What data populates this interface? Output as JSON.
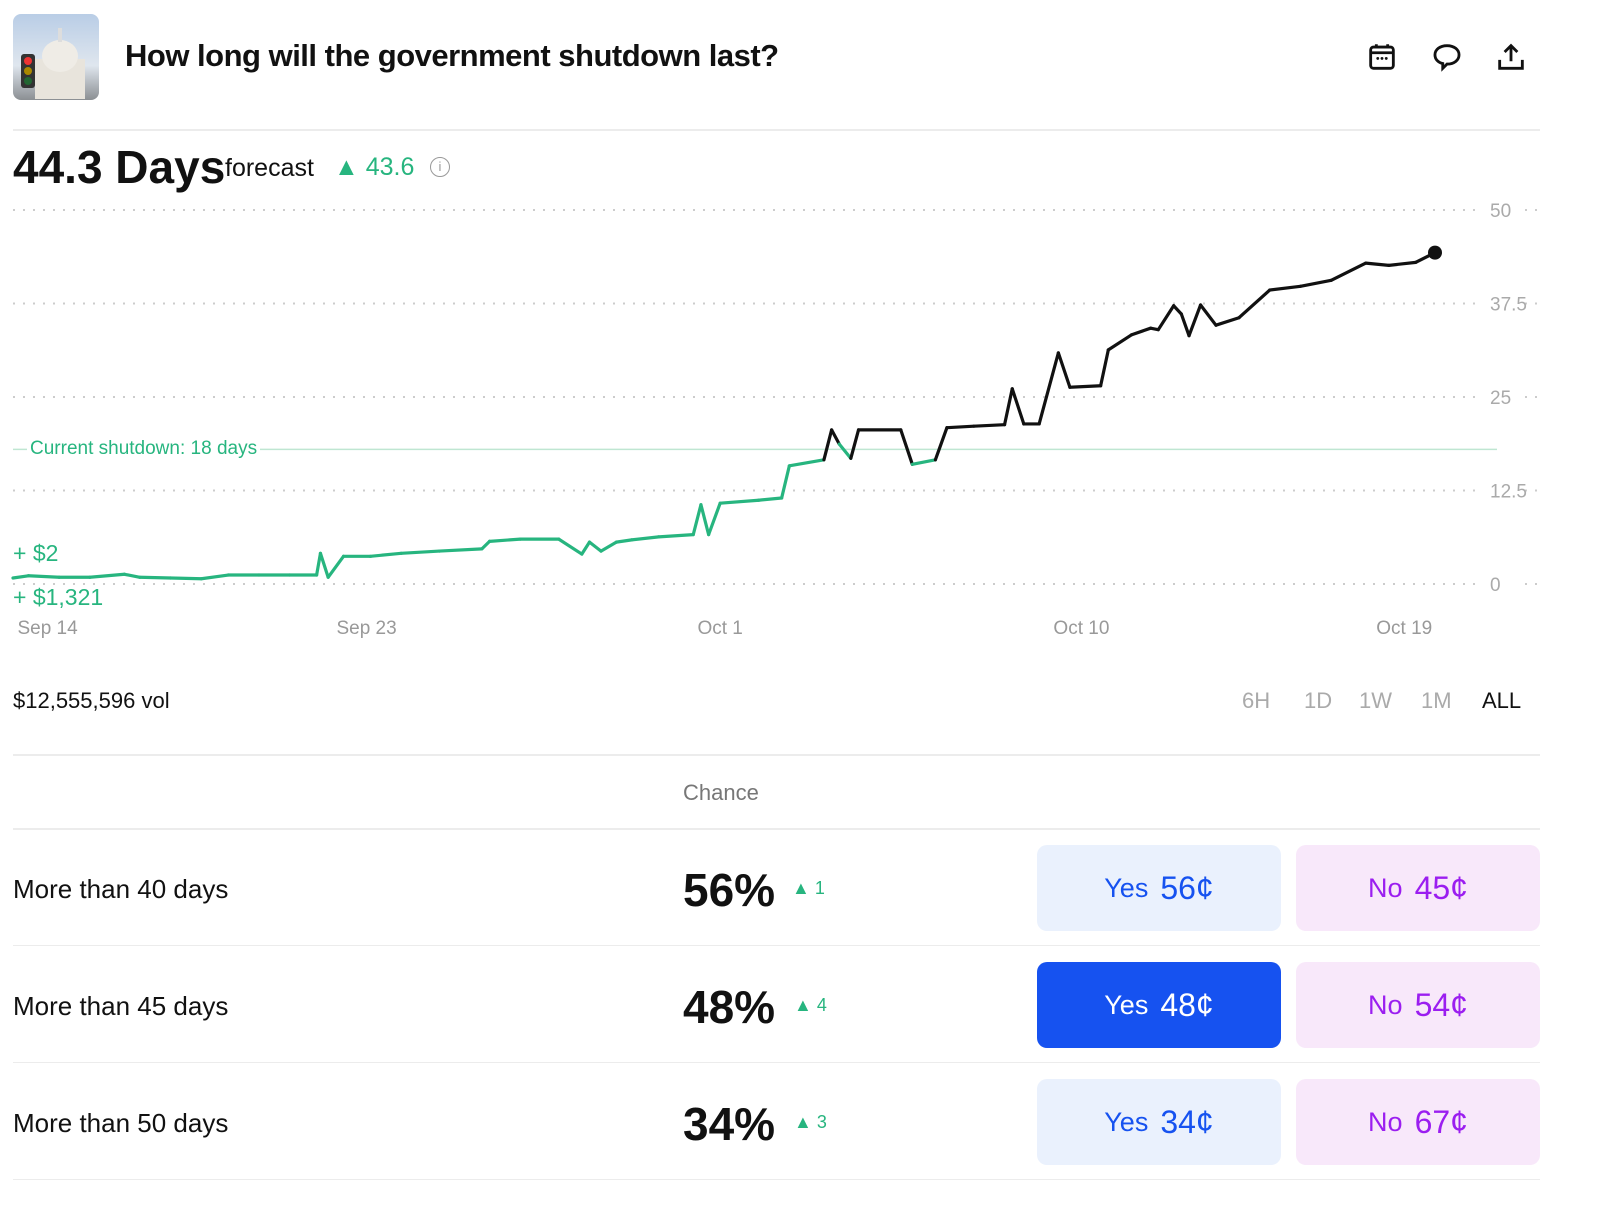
{
  "header": {
    "title": "How long will the government shutdown last?",
    "icons": [
      "calendar-icon",
      "comment-icon",
      "share-icon"
    ]
  },
  "forecast": {
    "value": "44.3 Days",
    "label": "forecast",
    "change": "43.6"
  },
  "chart_data": {
    "type": "line",
    "yticks": [
      "50",
      "37.5",
      "25",
      "12.5",
      "0"
    ],
    "ytick_values": [
      50,
      37.5,
      25,
      12.5,
      0
    ],
    "ylim": [
      0,
      50
    ],
    "xlim": [
      0,
      37
    ],
    "xticks": [
      {
        "label": "Sep 14",
        "day": 0.9
      },
      {
        "label": "Sep 23",
        "day": 9.2
      },
      {
        "label": "Oct 1",
        "day": 18.4
      },
      {
        "label": "Oct 10",
        "day": 27.8
      },
      {
        "label": "Oct 19",
        "day": 36.2
      }
    ],
    "reference": {
      "label": "Current shutdown: 18 days",
      "value": 18
    },
    "annotations": [
      "+ $2",
      "+ $1,321"
    ],
    "colors": {
      "below": "#27b57f",
      "above": "#111111"
    },
    "points": [
      [
        0,
        0.8
      ],
      [
        0.4,
        1.1
      ],
      [
        1.2,
        0.9
      ],
      [
        2.0,
        0.9
      ],
      [
        2.9,
        1.3
      ],
      [
        3.3,
        0.9
      ],
      [
        4.1,
        0.8
      ],
      [
        4.9,
        0.7
      ],
      [
        5.6,
        1.2
      ],
      [
        6.4,
        1.2
      ],
      [
        7.2,
        1.2
      ],
      [
        7.9,
        1.2
      ],
      [
        8.0,
        4.1
      ],
      [
        8.2,
        0.9
      ],
      [
        8.6,
        3.7
      ],
      [
        9.3,
        3.7
      ],
      [
        10.1,
        4.1
      ],
      [
        11.1,
        4.4
      ],
      [
        12.2,
        4.7
      ],
      [
        12.4,
        5.7
      ],
      [
        13.2,
        6.0
      ],
      [
        14.2,
        6.0
      ],
      [
        14.8,
        4.0
      ],
      [
        15.0,
        5.6
      ],
      [
        15.3,
        4.4
      ],
      [
        15.7,
        5.6
      ],
      [
        16.1,
        5.9
      ],
      [
        16.8,
        6.3
      ],
      [
        17.7,
        6.6
      ],
      [
        17.9,
        10.6
      ],
      [
        18.1,
        6.6
      ],
      [
        18.4,
        10.8
      ],
      [
        19.4,
        11.2
      ],
      [
        20.0,
        11.5
      ],
      [
        20.2,
        15.8
      ],
      [
        21.1,
        16.6
      ],
      [
        21.3,
        20.6
      ],
      [
        21.5,
        18.7
      ],
      [
        21.8,
        16.8
      ],
      [
        22.0,
        20.6
      ],
      [
        23.1,
        20.6
      ],
      [
        23.4,
        16.0
      ],
      [
        24.0,
        16.6
      ],
      [
        24.3,
        20.9
      ],
      [
        25.0,
        21.1
      ],
      [
        25.8,
        21.3
      ],
      [
        26.0,
        26.1
      ],
      [
        26.3,
        21.4
      ],
      [
        26.7,
        21.4
      ],
      [
        27.2,
        30.9
      ],
      [
        27.5,
        26.3
      ],
      [
        28.3,
        26.5
      ],
      [
        28.5,
        31.3
      ],
      [
        29.1,
        33.3
      ],
      [
        29.6,
        34.2
      ],
      [
        29.8,
        34.0
      ],
      [
        30.2,
        37.2
      ],
      [
        30.4,
        36.1
      ],
      [
        30.6,
        33.2
      ],
      [
        30.9,
        37.3
      ],
      [
        31.3,
        34.6
      ],
      [
        31.9,
        35.6
      ],
      [
        32.7,
        39.3
      ],
      [
        33.5,
        39.8
      ],
      [
        34.3,
        40.6
      ],
      [
        35.2,
        42.9
      ],
      [
        35.8,
        42.6
      ],
      [
        36.5,
        43.0
      ],
      [
        37.0,
        44.3
      ]
    ]
  },
  "volume": "$12,555,596 vol",
  "ranges": [
    "6H",
    "1D",
    "1W",
    "1M",
    "ALL"
  ],
  "table": {
    "header": "Chance",
    "rows": [
      {
        "label": "More than 40 days",
        "chance": "56%",
        "change": "1",
        "yes": "Yes",
        "yes_price": "56¢",
        "no": "No",
        "no_price": "45¢"
      },
      {
        "label": "More than 45 days",
        "chance": "48%",
        "change": "4",
        "yes": "Yes",
        "yes_price": "48¢",
        "no": "No",
        "no_price": "54¢"
      },
      {
        "label": "More than 50 days",
        "chance": "34%",
        "change": "3",
        "yes": "Yes",
        "yes_price": "34¢",
        "no": "No",
        "no_price": "67¢"
      }
    ]
  }
}
